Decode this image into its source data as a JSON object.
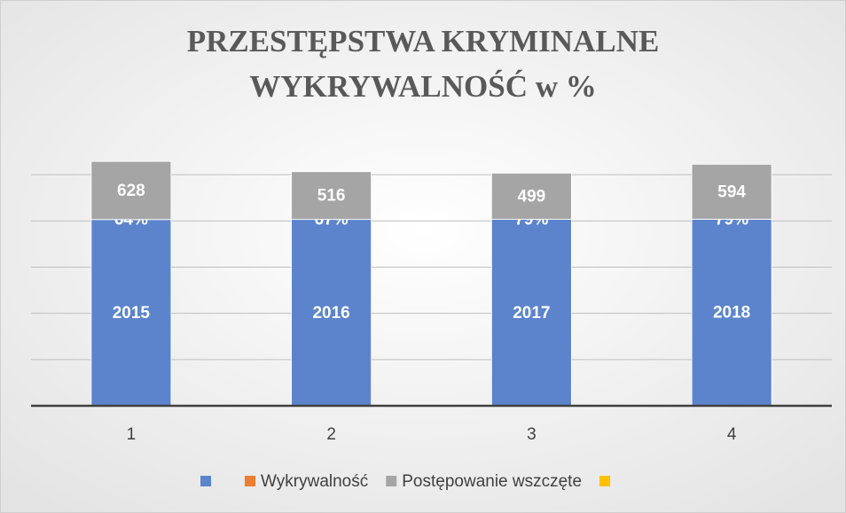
{
  "chart_data": {
    "type": "stacked-bar",
    "title": [
      "PRZESTĘPSTWA KRYMINALNE",
      "WYKRYWALNOŚĆ  w %"
    ],
    "categories": [
      "1",
      "2",
      "3",
      "4"
    ],
    "series": [
      {
        "color": "#5b84cc",
        "values": [
          2015,
          2016,
          2017,
          2018
        ]
      },
      {
        "name": "Wykrywalność",
        "color": "#ed7d31",
        "values": [
          0.64,
          0.67,
          0.79,
          0.79
        ],
        "value_labels": [
          "64%",
          "67%",
          "79%",
          "79%"
        ]
      },
      {
        "name": "Postępowanie wszczęte",
        "color": "#a5a5a5",
        "values": [
          628,
          516,
          499,
          594
        ]
      },
      {
        "color": "#ffc000"
      }
    ],
    "ylim": [
      0,
      3000
    ],
    "yticks": [
      0,
      500,
      1000,
      1500,
      2000,
      2500
    ],
    "grid": true
  }
}
